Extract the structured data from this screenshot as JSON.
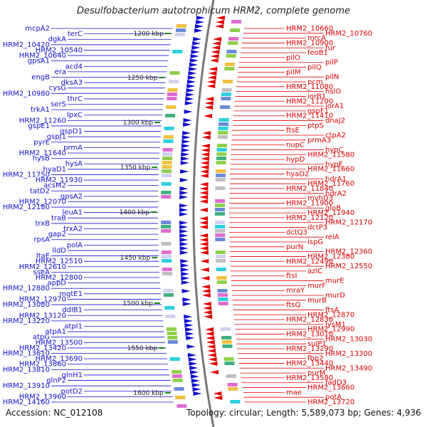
{
  "title": "Desulfobacterium autotrophicum HRM2, complete genome",
  "accession_text": "Accession: NC_012108",
  "topology_text": "Topology: circular; Length: 5,589,073 bp; Genes: 4,936",
  "colors": {
    "forward_strand": "#1010d0",
    "reverse_strand": "#e00000",
    "backbone": "#777777",
    "tick": "#1a8a1a"
  },
  "kbp_ticks": [
    "1200 kbp",
    "1250 kbp",
    "1300 kbp",
    "1350 kbp",
    "1400 kbp",
    "1450 kbp",
    "1500 kbp",
    "1550 kbp",
    "1600 kbp"
  ],
  "left_genes": [
    "mcpA2",
    "terC",
    "dgkA",
    "HRM2_10420",
    "HRM2_10540",
    "HRM2_10640",
    "gpsA1",
    "acd4",
    "era",
    "engB",
    "dksA3",
    "cysG",
    "HRM2_10980",
    "thrC",
    "serS",
    "trkA1",
    "lpxC",
    "HRM2_11260",
    "gspE1",
    "gspD1",
    "gspJ1",
    "pyrE",
    "prmA",
    "HRM2_11640",
    "hysB",
    "hysA",
    "hyaD1",
    "HRM2_11750",
    "HRM2_11930",
    "acsM2",
    "tatD2",
    "gpsA2",
    "HRM2_12070",
    "HRM2_12180",
    "leuA1",
    "traB",
    "trxB",
    "trxA2",
    "gap2",
    "rpsA",
    "polA",
    "lldD",
    "ltaE",
    "HRM2_12510",
    "HRM2_12610",
    "sseA",
    "HRM2_12800",
    "appD",
    "HRM2_12880",
    "mgtE1",
    "HRM2_12970",
    "HRM2_13080",
    "ddlB1",
    "HRM2_13120",
    "HRM2_13220",
    "atpI1",
    "atpA1",
    "atpG",
    "HRM2_13500",
    "HRM2_13420",
    "HRM2_13610",
    "HRM2_13690",
    "HRM2_13860",
    "HRM2_13810",
    "glnH1",
    "glnP2",
    "HRM2_13910",
    "potD2",
    "HRM2_13960",
    "HRM2_14160"
  ],
  "right_genes": [
    "HRM2_10660",
    "HRM2_10760",
    "mrcA",
    "HRM2_10900",
    "fur",
    "feoB1",
    "pilO",
    "pilP",
    "pilQ",
    "pilM",
    "pilN",
    "pcm",
    "HRM2_11080",
    "hslO",
    "iorB1",
    "HRM2_11200",
    "iorA1",
    "gspF1",
    "HRM2_11410",
    "dnaJ2",
    "ptpS",
    "ftsE",
    "ctpA2",
    "prmA3",
    "nupC",
    "hypC",
    "HRM2_11580",
    "hypD",
    "hypE",
    "HRM2_11660",
    "hyaD2",
    "hdrA1",
    "HRM2_11760",
    "HRM2_11840",
    "hdrA2",
    "mvhD3",
    "HRM2_11900",
    "gloB",
    "HRM2_11940",
    "HRM2_12120",
    "HRM2_12170",
    "dctP3",
    "dctQ3",
    "relA",
    "ispG",
    "purN",
    "HRM2_12360",
    "HRM2_12380",
    "HRM2_12490",
    "HRM2_12550",
    "azlC",
    "ftsI",
    "murE",
    "murF",
    "mraY",
    "murD",
    "murB",
    "ftsQ",
    "ftsA",
    "HRM2_12870",
    "HRM2_12830",
    "lysM1",
    "HRM2_12990",
    "HRM2_13010",
    "HRM2_13030",
    "sulP1",
    "HRM2_13290",
    "HRM2_13300",
    "fbp2",
    "HRM2_13440",
    "HRM2_13490",
    "purM",
    "HRM2_13580",
    "fadD3",
    "HRM2_13660",
    "mae",
    "potA",
    "HRM2_13720"
  ]
}
